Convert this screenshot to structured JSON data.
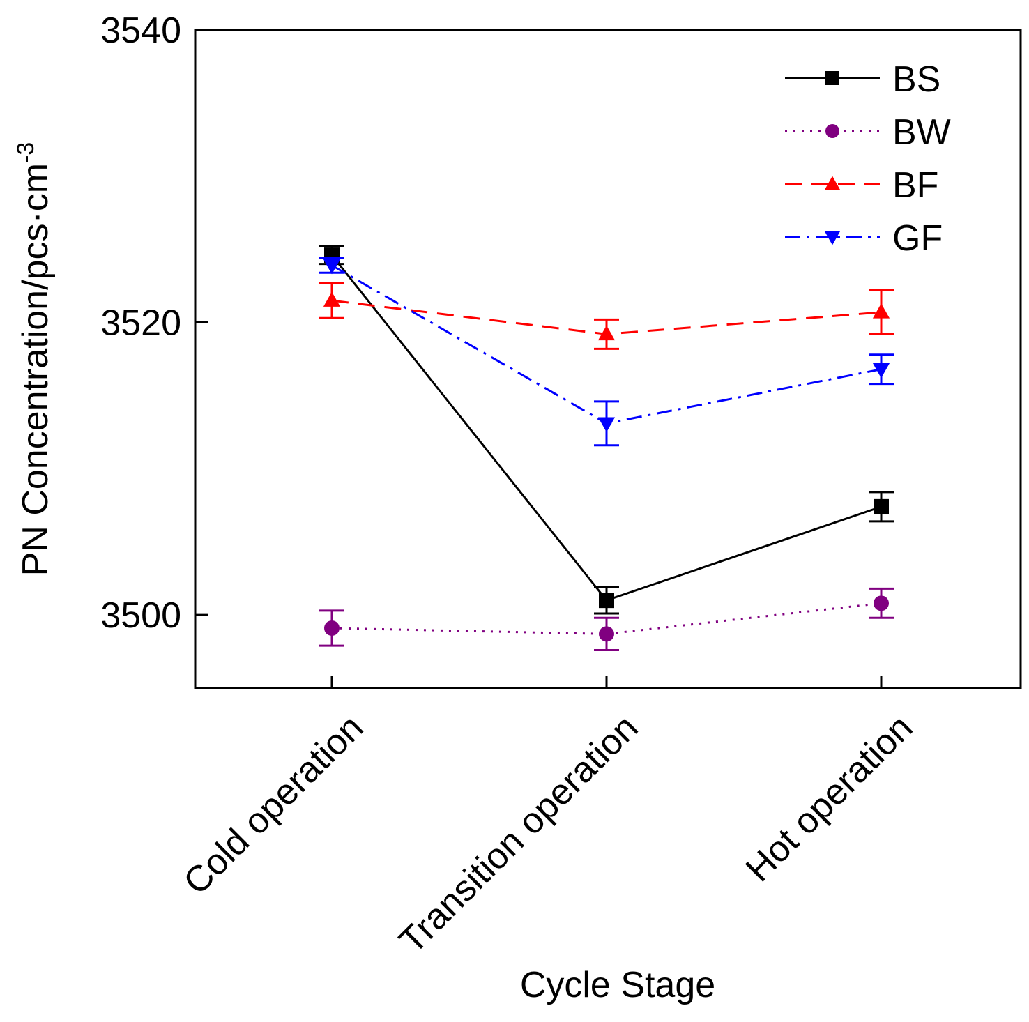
{
  "chart_data": {
    "type": "line",
    "title": "",
    "xlabel": "Cycle Stage",
    "ylabel_main": "PN Concentration/pcs·cm",
    "ylabel_superscript": "-3",
    "categories": [
      "Cold operation",
      "Transition operation",
      "Hot operation"
    ],
    "ylim": [
      3495,
      3540
    ],
    "yticks": [
      3500,
      3520,
      3540
    ],
    "ytick_labels": [
      "3500",
      "3520",
      "3540"
    ],
    "legend_position": "top-right",
    "series": [
      {
        "name": "BS",
        "values": [
          3524.6,
          3501.0,
          3507.4
        ],
        "errors": [
          0.6,
          0.9,
          1.0
        ],
        "color": "#000000",
        "marker": "square",
        "line_style": "solid"
      },
      {
        "name": "BW",
        "values": [
          3499.1,
          3498.7,
          3500.8
        ],
        "errors": [
          1.2,
          1.1,
          1.0
        ],
        "color": "#800080",
        "marker": "circle",
        "line_style": "dotted"
      },
      {
        "name": "BF",
        "values": [
          3521.5,
          3519.2,
          3520.7
        ],
        "errors": [
          1.2,
          1.0,
          1.5
        ],
        "color": "#ff0000",
        "marker": "triangle-up",
        "line_style": "dashed"
      },
      {
        "name": "GF",
        "values": [
          3523.9,
          3513.1,
          3516.8
        ],
        "errors": [
          0.5,
          1.5,
          1.0
        ],
        "color": "#0000ff",
        "marker": "triangle-down",
        "line_style": "dashdot"
      }
    ]
  }
}
